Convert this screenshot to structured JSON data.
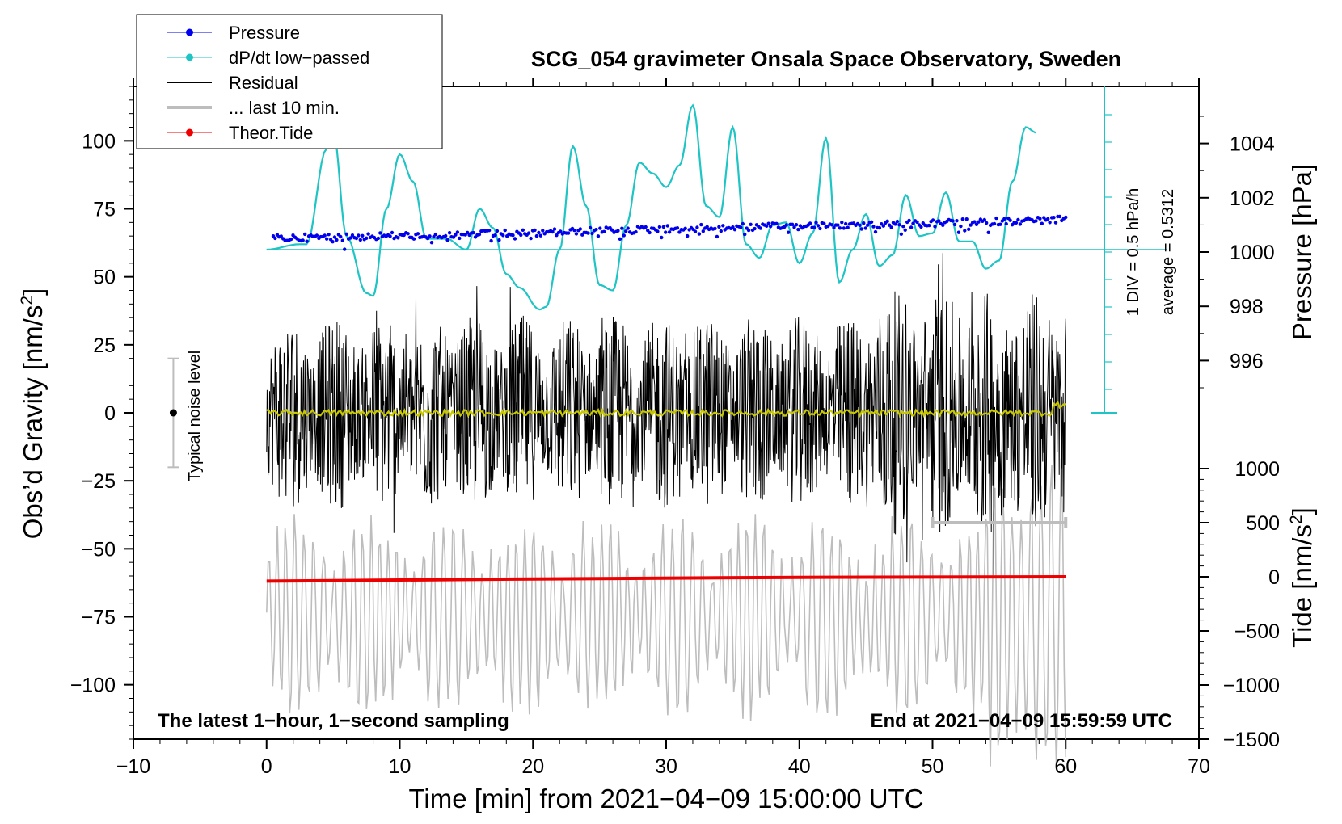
{
  "chart_data": {
    "type": "line",
    "title": "SCG_054 gravimeter Onsala Space Observatory, Sweden",
    "xlabel": "Time [min] from 2021−04−09 15:00:00 UTC",
    "ylabel_left": "Obs’d Gravity [nm/s",
    "ylabel_left_sup": "2",
    "ylabel_left_end": "]",
    "ylabel_right_pressure": "Pressure [hPa]",
    "ylabel_right_tide": "Tide [nm/s",
    "ylabel_right_tide_sup": "2",
    "ylabel_right_tide_end": "]",
    "xlim": [
      -10,
      70
    ],
    "ylim_left": [
      -120,
      120
    ],
    "x_ticks": [
      "−10",
      "0",
      "10",
      "20",
      "30",
      "40",
      "50",
      "60",
      "70"
    ],
    "x_tick_values": [
      -10,
      0,
      10,
      20,
      30,
      40,
      50,
      60,
      70
    ],
    "y_left_ticks": [
      "100",
      "75",
      "50",
      "25",
      "0",
      "−25",
      "−50",
      "−75",
      "−100"
    ],
    "y_left_tick_values": [
      100,
      75,
      50,
      25,
      0,
      -25,
      -50,
      -75,
      -100
    ],
    "pressure_ticks": [
      "1004",
      "1002",
      "1000",
      "998",
      "996"
    ],
    "pressure_tick_values": [
      1004,
      1002,
      1000,
      998,
      996
    ],
    "tide_ticks": [
      "1000",
      "500",
      "0",
      "−500",
      "−1000",
      "−1500"
    ],
    "tide_tick_values": [
      1000,
      500,
      0,
      -500,
      -1000,
      -1500
    ],
    "legend": [
      {
        "label": "Pressure",
        "color": "#0000ee",
        "style": "line-dot"
      },
      {
        "label": "dP/dt low−passed",
        "color": "#1fc4c4",
        "style": "line-dot"
      },
      {
        "label": "Residual",
        "color": "#000000",
        "style": "line"
      },
      {
        "label": "... last 10 min.",
        "color": "#bdbdbd",
        "style": "thick-line"
      },
      {
        "label": "Theor.Tide",
        "color": "#ee0000",
        "style": "line-dot"
      }
    ],
    "annotations": {
      "bottom_left": "The latest 1−hour, 1−second sampling",
      "bottom_right": "End at 2021−04−09 15:59:59 UTC",
      "noise_label": "Typical noise level",
      "div_label": "1 DIV = 0.5 hPa/h",
      "average_label": "average = 0.5312"
    },
    "noise_bar": {
      "x": -7,
      "center": 0,
      "half_range": 20
    },
    "last10_bar": {
      "x_start": 50,
      "x_end": 60
    },
    "series": [
      {
        "name": "dP/dt low-passed",
        "color": "#1fc4c4",
        "x": [
          0,
          2.5,
          3,
          4.5,
          5,
          6,
          7.5,
          8,
          9,
          10,
          11,
          12,
          13.5,
          15,
          16,
          17,
          18,
          19,
          20.5,
          21,
          22,
          23,
          24,
          25,
          26,
          27,
          28,
          29,
          30,
          31,
          32,
          33,
          34,
          35,
          36,
          37,
          38,
          39,
          40,
          41,
          42,
          43,
          44,
          45,
          46,
          47,
          48,
          49,
          50,
          51,
          52,
          53,
          54,
          55,
          56,
          57,
          57.8
        ],
        "values": [
          60,
          62,
          62,
          97,
          104,
          65,
          44,
          43,
          75,
          95,
          85,
          64,
          64,
          60,
          75,
          68,
          51,
          46,
          38,
          39,
          60,
          98,
          76,
          47,
          45,
          69,
          92,
          88,
          83,
          91,
          113,
          76,
          72,
          105,
          62,
          57,
          69,
          70,
          55,
          66,
          101,
          48,
          60,
          73,
          54,
          58,
          80,
          65,
          66,
          81,
          63,
          63,
          53,
          56,
          85,
          105,
          103
        ]
      },
      {
        "name": "Pressure",
        "color": "#0000ee",
        "x": [
          0,
          10,
          20,
          30,
          40,
          50,
          60
        ],
        "values": [
          1000.5,
          1000.6,
          1000.7,
          1000.85,
          1000.95,
          1001.05,
          1001.2
        ]
      },
      {
        "name": "Residual",
        "color": "#000000",
        "x_range": [
          0,
          60
        ],
        "amplitude": 36
      },
      {
        "name": "Residual smoothed",
        "color": "#c8c800",
        "x_range": [
          0,
          60
        ],
        "values_approx": 0
      },
      {
        "name": "... last 10 min.",
        "color": "#bdbdbd",
        "x_range": [
          0,
          60
        ],
        "offset": -75,
        "amplitude": 35
      },
      {
        "name": "Theor.Tide",
        "color": "#ee0000",
        "x": [
          0,
          20,
          40,
          60
        ],
        "values": [
          -40,
          -20,
          -5,
          0
        ]
      }
    ]
  }
}
